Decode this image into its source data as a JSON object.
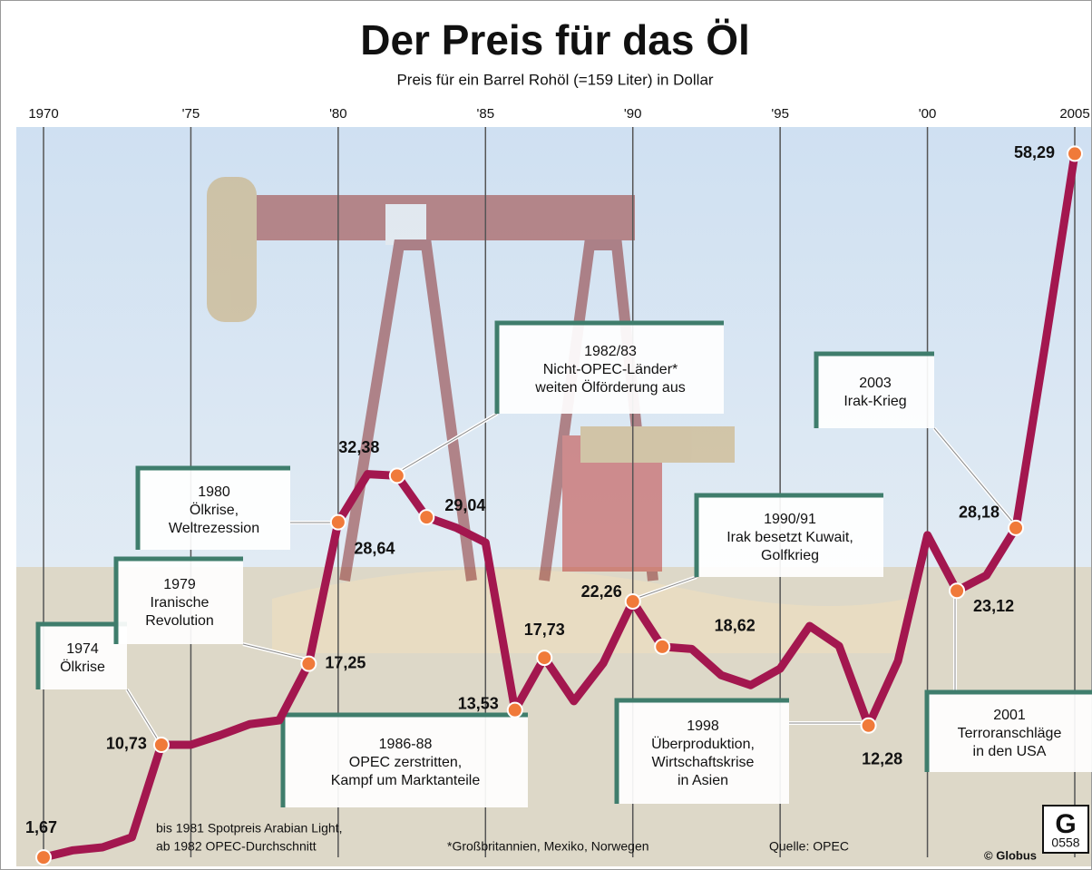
{
  "chart_data": {
    "type": "line",
    "title": "Der Preis für das Öl",
    "subtitle": "Preis für ein Barrel Rohöl (=159 Liter) in Dollar",
    "x": [
      1970,
      1971,
      1972,
      1973,
      1974,
      1975,
      1976,
      1977,
      1978,
      1979,
      1980,
      1981,
      1982,
      1983,
      1984,
      1985,
      1986,
      1987,
      1988,
      1989,
      1990,
      1991,
      1992,
      1993,
      1994,
      1995,
      1996,
      1997,
      1998,
      1999,
      2000,
      2001,
      2002,
      2003,
      2004,
      2005
    ],
    "series": [
      {
        "color": "#a3174f",
        "marker_color": "#f07a3a",
        "values": [
          1.67,
          2.24,
          2.48,
          3.29,
          10.73,
          10.73,
          11.51,
          12.39,
          12.7,
          17.25,
          28.64,
          32.51,
          32.38,
          29.04,
          28.2,
          27.01,
          13.53,
          17.73,
          14.24,
          17.31,
          22.26,
          18.62,
          18.44,
          16.33,
          15.53,
          16.86,
          20.29,
          18.68,
          12.28,
          17.47,
          27.6,
          23.12,
          24.36,
          28.18,
          43,
          58.29
        ],
        "value_labels": [
          "1,67",
          null,
          null,
          null,
          "10,73",
          null,
          null,
          null,
          null,
          "17,25",
          "28,64",
          null,
          "32,38",
          "29,04",
          null,
          null,
          "13,53",
          "17,73",
          null,
          null,
          "22,26",
          "18,62",
          null,
          null,
          null,
          null,
          null,
          null,
          "12,28",
          null,
          null,
          "23,12",
          null,
          "28,18",
          null,
          "58,29"
        ]
      }
    ],
    "xlim": [
      1970,
      2005
    ],
    "xticks": [
      1970,
      {
        "value": 1975,
        "label": "'75"
      },
      {
        "value": 1980,
        "label": "'80"
      },
      {
        "value": 1985,
        "label": "'85"
      },
      {
        "value": 1990,
        "label": "'90"
      },
      {
        "value": 1995,
        "label": "'95"
      },
      {
        "value": 2000,
        "label": "'00"
      },
      2005
    ],
    "ylim": [
      0,
      60
    ],
    "annotations": [
      {
        "lines": [
          "1974",
          "Ölkrise"
        ]
      },
      {
        "lines": [
          "1979",
          "Iranische",
          "Revolution"
        ]
      },
      {
        "lines": [
          "1980",
          "Ölkrise,",
          "Weltrezession"
        ]
      },
      {
        "lines": [
          "1982/83",
          "Nicht-OPEC-Länder*",
          "weiten Ölförderung aus"
        ]
      },
      {
        "lines": [
          "1986-88",
          "OPEC zerstritten,",
          "Kampf um Marktanteile"
        ]
      },
      {
        "lines": [
          "1990/91",
          "Irak besetzt Kuwait,",
          "Golfkrieg"
        ]
      },
      {
        "lines": [
          "1998",
          "Überproduktion,",
          "Wirtschaftskrise",
          "in Asien"
        ]
      },
      {
        "lines": [
          "2003",
          "Irak-Krieg"
        ]
      },
      {
        "lines": [
          "2001",
          "Terroranschläge",
          "in den USA"
        ]
      }
    ],
    "notes": [
      "bis 1981 Spotpreis Arabian Light,",
      "ab 1982 OPEC-Durchschnitt",
      "*Großbritannien, Mexiko, Norwegen",
      "Quelle: OPEC"
    ],
    "credit": "© Globus",
    "code": "0558"
  }
}
